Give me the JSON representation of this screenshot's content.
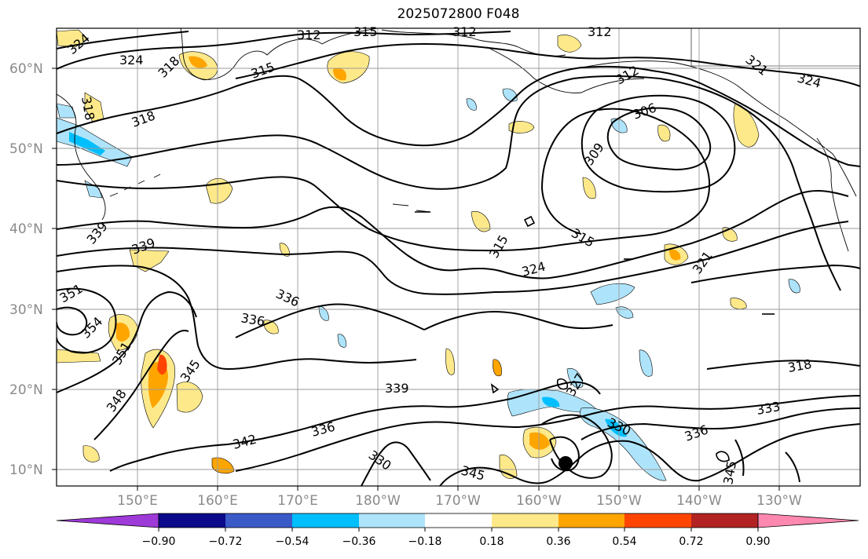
{
  "title": "2025072800 F048",
  "latitude_labels": [
    "60°N",
    "50°N",
    "40°N",
    "30°N",
    "20°N",
    "10°N"
  ],
  "longitude_labels": [
    "150°E",
    "160°E",
    "170°E",
    "180°W",
    "170°W",
    "160°W",
    "150°W",
    "140°W",
    "130°W"
  ],
  "contour_labels": [
    "324",
    "312",
    "315",
    "312",
    "312",
    "321",
    "318",
    "324",
    "318",
    "315",
    "312",
    "324",
    "306",
    "318",
    "309",
    "339",
    "315",
    "339",
    "315",
    "321",
    "324",
    "351",
    "336",
    "354",
    "336",
    "351",
    "345",
    "348",
    "339",
    "318",
    "327",
    "330",
    "333",
    "342",
    "336",
    "330",
    "345",
    "336",
    "345"
  ],
  "colorbar": {
    "ticks": [
      "−0.90",
      "−0.72",
      "−0.54",
      "−0.36",
      "−0.18",
      "0.18",
      "0.36",
      "0.54",
      "0.72",
      "0.90"
    ],
    "colors": [
      "#9e3ad8",
      "#0a0a8a",
      "#3a5ac8",
      "#00bfff",
      "#aee4fb",
      "#ffffff",
      "#fde98a",
      "#ffa500",
      "#ff4500",
      "#b22222",
      "#ff88b0"
    ]
  },
  "marker": "black dot",
  "colors": {
    "contour": "#000000",
    "grid": "#9a9a9a",
    "coast": "#000000",
    "axis_text": "#8a8a8a"
  }
}
